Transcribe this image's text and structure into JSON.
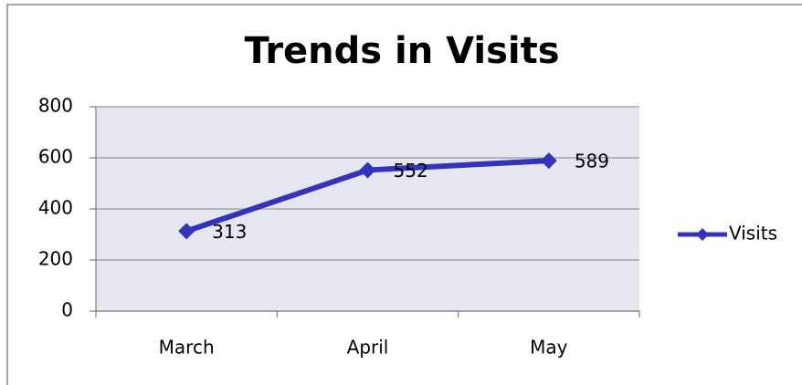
{
  "chart_data": {
    "type": "line",
    "title": "Trends in Visits",
    "categories": [
      "March",
      "April",
      "May"
    ],
    "series": [
      {
        "name": "Visits",
        "color": "#3333bb",
        "values": [
          313,
          552,
          589
        ]
      }
    ],
    "ylim": [
      0,
      800
    ],
    "yticks": [
      0,
      200,
      400,
      600,
      800
    ],
    "grid": true,
    "legend": "right"
  }
}
